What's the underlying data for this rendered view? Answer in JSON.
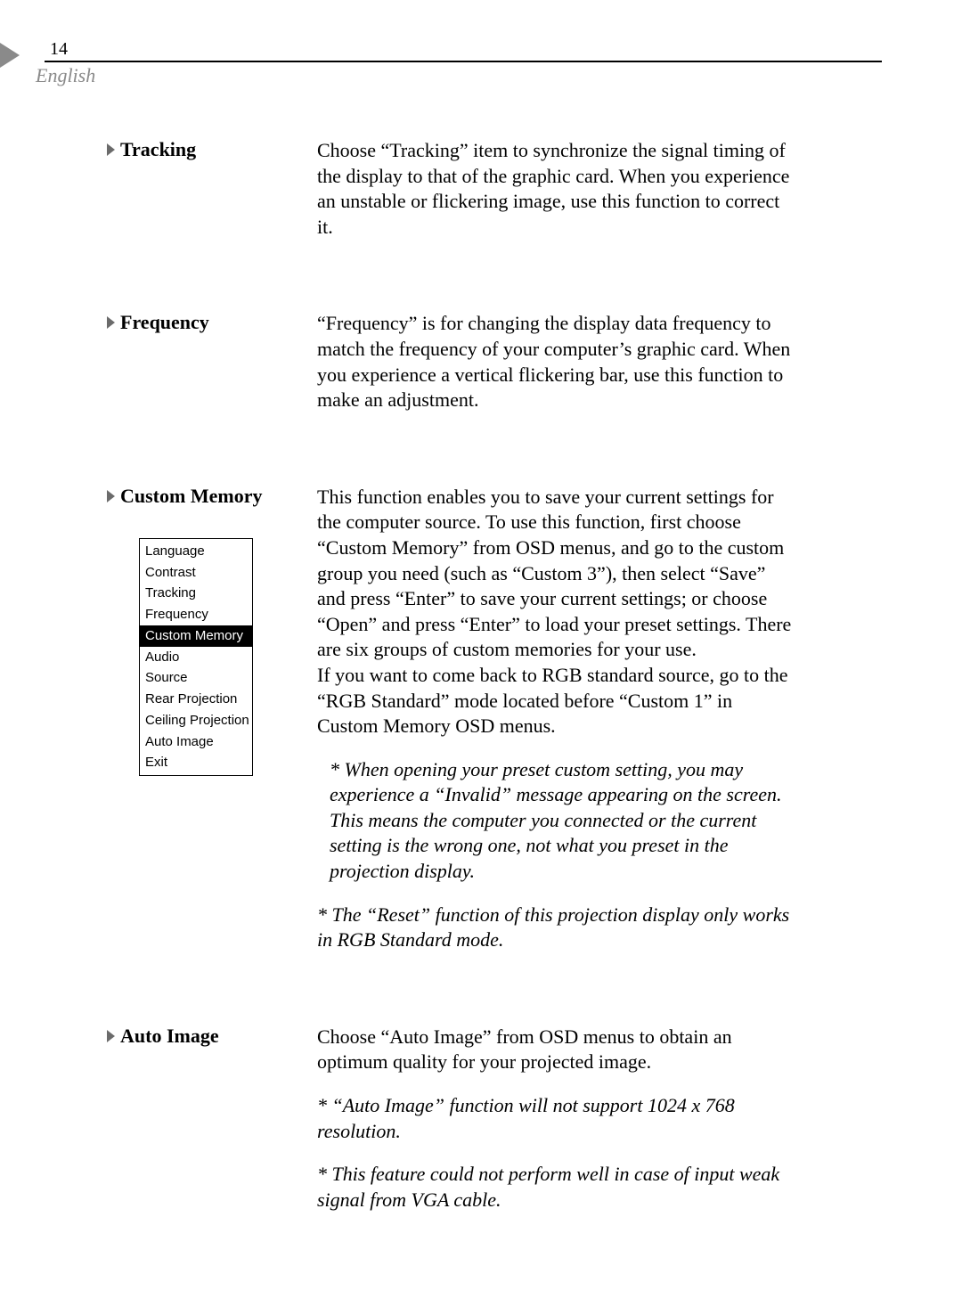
{
  "page_number": "14",
  "language_label": "English",
  "sections": {
    "tracking": {
      "heading": "Tracking",
      "body": "Choose “Tracking” item to synchronize the signal timing of the display to that of the graphic card.  When you experience an unstable or flickering image, use this function to correct it."
    },
    "frequency": {
      "heading": "Frequency",
      "body": "“Frequency” is for changing the display data frequency to match the frequency of your computer’s graphic card. When you experience a vertical flickering bar, use this function to make an adjustment."
    },
    "custom_memory": {
      "heading": "Custom Memory",
      "para1": "This function enables you to save your current settings for the computer source.  To use this function, first choose “Custom Memory” from OSD menus, and go to the custom group you need (such as “Custom 3”), then select “Save” and press “Enter” to save your current settings; or choose “Open” and press “Enter” to load your preset settings. There are six groups of custom memories for your use.",
      "para2": "If you want to come back to RGB standard source, go to the “RGB Standard” mode located before “Custom 1” in Custom Memory OSD menus.",
      "note1": "* When opening your preset custom setting, you may experience a “Invalid” message appearing on the screen. This means the computer you connected or the current setting is the wrong one, not what you preset in the projection display.",
      "note2": "* The “Reset” function of this projection display only works in RGB Standard mode."
    },
    "auto_image": {
      "heading": "Auto Image",
      "para1": "Choose “Auto Image” from OSD menus to obtain an optimum quality for your projected image.",
      "note1": "* “Auto Image” function will not support 1024 x 768 resolution.",
      "note2": "* This feature could not perform well in case of input weak signal from VGA cable."
    }
  },
  "osd_menu": {
    "items": [
      "Language",
      "Contrast",
      "Tracking",
      "Frequency",
      "Custom Memory",
      "Audio",
      "Source",
      "Rear Projection",
      "Ceiling Projection",
      "Auto Image",
      "Exit"
    ],
    "selected_index": 4
  },
  "colors": {
    "accent_gray": "#8a8a8a",
    "text": "#000000",
    "background": "#ffffff"
  }
}
